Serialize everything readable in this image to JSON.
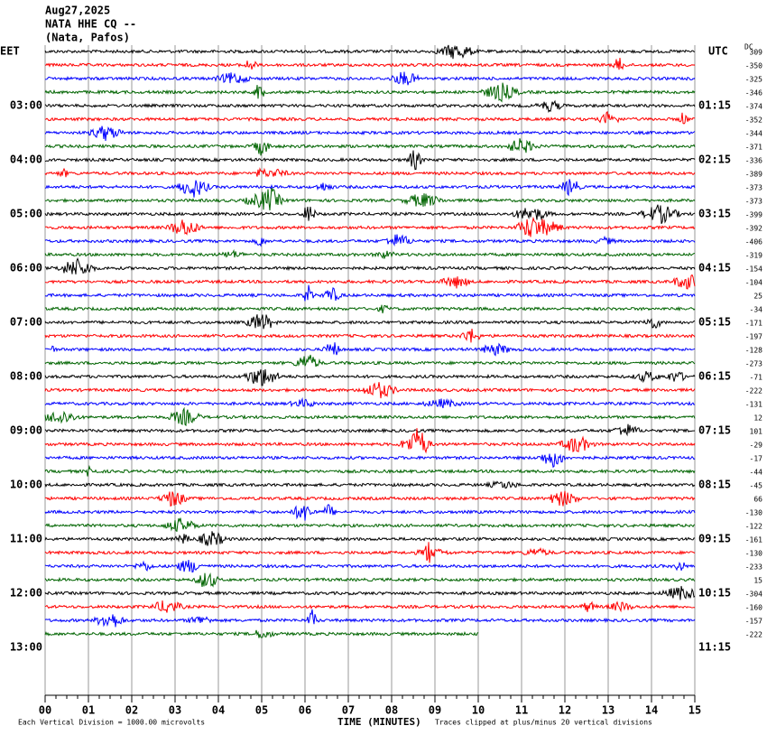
{
  "chart_data": {
    "type": "helicorder",
    "title_lines": [
      "Aug27,2025",
      "NATA HHE CQ --",
      "(Nata, Pafos)"
    ],
    "left_zone": "EET",
    "right_zone": "UTC",
    "dc_label": "DC",
    "left_labels": [
      "03:00",
      "04:00",
      "05:00",
      "06:00",
      "07:00",
      "08:00",
      "09:00",
      "10:00",
      "11:00",
      "12:00",
      "13:00"
    ],
    "right_labels": [
      "01:15",
      "02:15",
      "03:15",
      "04:15",
      "05:15",
      "06:15",
      "07:15",
      "08:15",
      "09:15",
      "10:15",
      "11:15"
    ],
    "dc_offsets": [
      309,
      -350,
      -325,
      -346,
      -374,
      -352,
      -344,
      -371,
      -336,
      -389,
      -373,
      -373,
      -399,
      -392,
      -406,
      -319,
      -154,
      -104,
      25,
      -34,
      -171,
      -197,
      -128,
      -273,
      -71,
      -222,
      -131,
      12,
      101,
      -29,
      -17,
      -44,
      -45,
      66,
      -130,
      -122,
      -161,
      -130,
      -233,
      15,
      -304,
      -160,
      -157,
      -222
    ],
    "trace_colors": [
      "#000000",
      "#ff0000",
      "#0000ff",
      "#006400"
    ],
    "xlabel": "TIME (MINUTES)",
    "xlim": [
      0,
      15
    ],
    "xticks": [
      {
        "value": 0,
        "label": "00"
      },
      {
        "value": 1,
        "label": "01"
      },
      {
        "value": 2,
        "label": "02"
      },
      {
        "value": 3,
        "label": "03"
      },
      {
        "value": 4,
        "label": "04"
      },
      {
        "value": 5,
        "label": "05"
      },
      {
        "value": 6,
        "label": "06"
      },
      {
        "value": 7,
        "label": "07"
      },
      {
        "value": 8,
        "label": "08"
      },
      {
        "value": 9,
        "label": "09"
      },
      {
        "value": 10,
        "label": "10"
      },
      {
        "value": 11,
        "label": "11"
      },
      {
        "value": 12,
        "label": "12"
      },
      {
        "value": 13,
        "label": "13"
      },
      {
        "value": 14,
        "label": "14"
      },
      {
        "value": 15,
        "label": "15"
      }
    ],
    "scale_note": "Each Vertical Division = 1000.00 microvolts",
    "clip_note": "Traces clipped at plus/minus 20 vertical divisions"
  }
}
